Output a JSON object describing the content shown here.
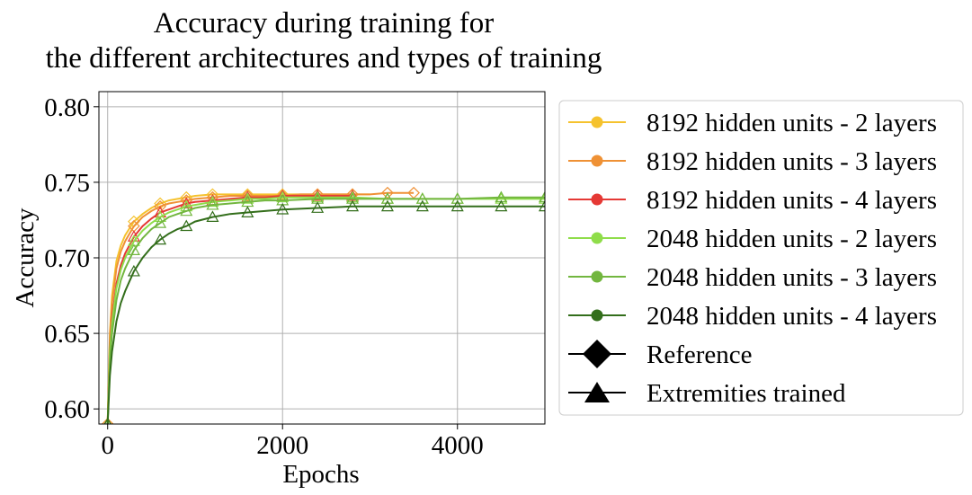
{
  "chart_data": {
    "type": "line",
    "title": [
      "Accuracy during training for",
      "the different architectures and types of training"
    ],
    "xlabel": "Epochs",
    "ylabel": "Accuracy",
    "xlim": [
      -100,
      5000
    ],
    "ylim": [
      0.59,
      0.81
    ],
    "xticks": [
      0,
      2000,
      4000
    ],
    "xtick_labels": [
      "0",
      "2000",
      "4000"
    ],
    "yticks": [
      0.6,
      0.65,
      0.7,
      0.75,
      0.8
    ],
    "ytick_labels": [
      "0.60",
      "0.65",
      "0.70",
      "0.75",
      "0.80"
    ],
    "grid": true,
    "legend_position": "outside-right",
    "legend": [
      {
        "label": "8192 hidden units - 2 layers",
        "color": "#f5c22e",
        "marker": "circle"
      },
      {
        "label": "8192 hidden units - 3 layers",
        "color": "#ef9135",
        "marker": "circle"
      },
      {
        "label": "8192 hidden units - 4 layers",
        "color": "#e53935",
        "marker": "circle"
      },
      {
        "label": "2048 hidden units - 2 layers",
        "color": "#8fdd4a",
        "marker": "circle"
      },
      {
        "label": "2048 hidden units - 3 layers",
        "color": "#72b63f",
        "marker": "circle"
      },
      {
        "label": "2048 hidden units - 4 layers",
        "color": "#336e1b",
        "marker": "circle"
      },
      {
        "label": "Reference",
        "color": "#000000",
        "marker": "diamond"
      },
      {
        "label": "Extremities trained",
        "color": "#000000",
        "marker": "triangle"
      }
    ],
    "series": [
      {
        "color": "#f5c22e",
        "marker": "diamond",
        "x": [
          0,
          25,
          50,
          100,
          150,
          200,
          300,
          400,
          500,
          600,
          700,
          800,
          900,
          1000,
          1200,
          1400,
          1600,
          1800,
          2000,
          2200,
          2400,
          2600,
          2800,
          3000
        ],
        "y": [
          0.59,
          0.65,
          0.675,
          0.698,
          0.708,
          0.715,
          0.724,
          0.729,
          0.733,
          0.736,
          0.738,
          0.739,
          0.74,
          0.741,
          0.742,
          0.742,
          0.742,
          0.742,
          0.742,
          0.742,
          0.742,
          0.742,
          0.742,
          0.742
        ]
      },
      {
        "color": "#ef9135",
        "marker": "diamond",
        "x": [
          0,
          25,
          50,
          100,
          150,
          200,
          300,
          400,
          500,
          600,
          700,
          800,
          900,
          1000,
          1200,
          1400,
          1600,
          1800,
          2000,
          2200,
          2400,
          2600,
          2800,
          3000,
          3200,
          3500
        ],
        "y": [
          0.59,
          0.647,
          0.67,
          0.693,
          0.704,
          0.711,
          0.721,
          0.727,
          0.731,
          0.734,
          0.736,
          0.737,
          0.738,
          0.739,
          0.74,
          0.741,
          0.741,
          0.741,
          0.741,
          0.742,
          0.742,
          0.742,
          0.742,
          0.742,
          0.743,
          0.743
        ]
      },
      {
        "color": "#e53935",
        "marker": "triangle",
        "x": [
          0,
          25,
          50,
          100,
          150,
          200,
          300,
          400,
          500,
          600,
          700,
          800,
          900,
          1000,
          1200,
          1400,
          1600,
          1800,
          2000,
          2200,
          2400,
          2600,
          2800
        ],
        "y": [
          0.59,
          0.64,
          0.66,
          0.683,
          0.695,
          0.703,
          0.714,
          0.721,
          0.726,
          0.73,
          0.732,
          0.734,
          0.736,
          0.737,
          0.738,
          0.739,
          0.74,
          0.74,
          0.741,
          0.741,
          0.741,
          0.741,
          0.741
        ]
      },
      {
        "color": "#8fdd4a",
        "marker": "triangle",
        "x": [
          0,
          25,
          50,
          100,
          150,
          200,
          300,
          400,
          500,
          600,
          700,
          800,
          900,
          1000,
          1200,
          1400,
          1600,
          1800,
          2000,
          2400,
          2800,
          3200,
          3600,
          4000,
          4500,
          5000
        ],
        "y": [
          0.59,
          0.638,
          0.657,
          0.68,
          0.692,
          0.7,
          0.711,
          0.718,
          0.723,
          0.727,
          0.73,
          0.732,
          0.734,
          0.735,
          0.737,
          0.738,
          0.739,
          0.739,
          0.74,
          0.74,
          0.74,
          0.739,
          0.739,
          0.739,
          0.739,
          0.739
        ]
      },
      {
        "color": "#72b63f",
        "marker": "triangle",
        "x": [
          0,
          25,
          50,
          100,
          150,
          200,
          300,
          400,
          500,
          600,
          700,
          800,
          900,
          1000,
          1200,
          1400,
          1600,
          1800,
          2000,
          2400,
          2800,
          3200,
          3600,
          4000,
          4500,
          5000
        ],
        "y": [
          0.59,
          0.632,
          0.65,
          0.672,
          0.685,
          0.693,
          0.705,
          0.713,
          0.719,
          0.723,
          0.727,
          0.729,
          0.731,
          0.733,
          0.735,
          0.736,
          0.737,
          0.738,
          0.738,
          0.739,
          0.739,
          0.739,
          0.739,
          0.739,
          0.74,
          0.74
        ]
      },
      {
        "color": "#336e1b",
        "marker": "triangle",
        "x": [
          0,
          25,
          50,
          100,
          150,
          200,
          300,
          400,
          500,
          600,
          700,
          800,
          900,
          1000,
          1200,
          1400,
          1600,
          1800,
          2000,
          2400,
          2800,
          3200,
          3600,
          4000,
          4500,
          5000
        ],
        "y": [
          0.59,
          0.622,
          0.638,
          0.658,
          0.67,
          0.678,
          0.691,
          0.7,
          0.707,
          0.712,
          0.716,
          0.719,
          0.721,
          0.724,
          0.727,
          0.729,
          0.73,
          0.731,
          0.732,
          0.733,
          0.734,
          0.734,
          0.734,
          0.734,
          0.734,
          0.734
        ]
      }
    ]
  }
}
